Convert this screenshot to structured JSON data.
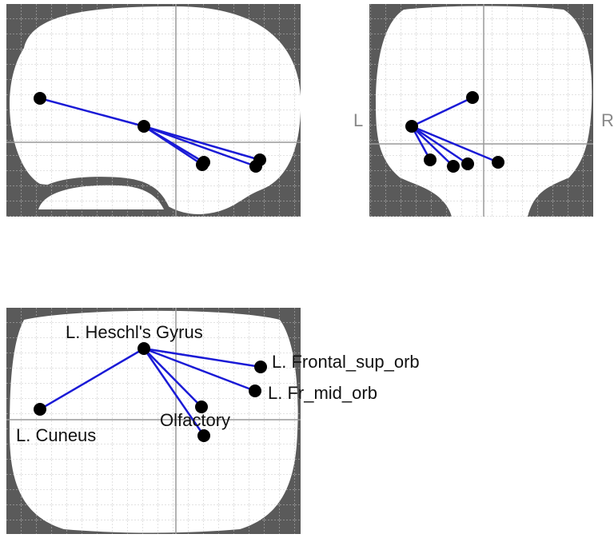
{
  "coronal_view": {
    "left_label": "L",
    "right_label": "R"
  },
  "axial_view": {
    "labels": [
      "L. Heschl's Gyrus",
      "L. Frontal_sup_orb",
      "L. Fr_mid_orb",
      "Olfactory",
      "L. Cuneus"
    ]
  }
}
